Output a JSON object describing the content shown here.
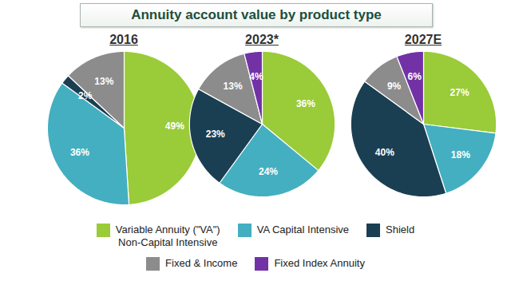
{
  "title": "Annuity account value by product type",
  "legend": "bottom",
  "chart_data": [
    {
      "type": "pie",
      "title": "2016",
      "categories": [
        "Variable Annuity (\"VA\")\nNon-Capital Intensive",
        "VA Capital Intensive",
        "Shield",
        "Fixed & Income"
      ],
      "values": [
        49,
        36,
        2,
        13
      ],
      "value_labels": [
        "49%",
        "36%",
        "2%",
        "13%"
      ],
      "colors": [
        "#9acb38",
        "#44afc0",
        "#1b3f52",
        "#8c8c8c"
      ],
      "data_labels": true
    },
    {
      "type": "pie",
      "title": "2023*",
      "categories": [
        "Variable Annuity (\"VA\")\nNon-Capital Intensive",
        "VA Capital Intensive",
        "Shield",
        "Fixed & Income",
        "Fixed Index Annuity"
      ],
      "values": [
        36,
        24,
        23,
        13,
        4
      ],
      "value_labels": [
        "36%",
        "24%",
        "23%",
        "13%",
        "4%"
      ],
      "colors": [
        "#9acb38",
        "#44afc0",
        "#1b3f52",
        "#8c8c8c",
        "#7232a6"
      ],
      "data_labels": true
    },
    {
      "type": "pie",
      "title": "2027E",
      "categories": [
        "Variable Annuity (\"VA\")\nNon-Capital Intensive",
        "VA Capital Intensive",
        "Shield",
        "Fixed & Income",
        "Fixed Index Annuity"
      ],
      "values": [
        27,
        18,
        40,
        9,
        6
      ],
      "value_labels": [
        "27%",
        "18%",
        "40%",
        "9%",
        "6%"
      ],
      "colors": [
        "#9acb38",
        "#44afc0",
        "#1b3f52",
        "#8c8c8c",
        "#7232a6"
      ],
      "data_labels": true
    }
  ]
}
